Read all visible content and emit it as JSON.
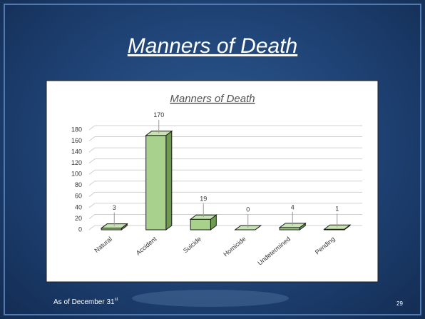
{
  "slide": {
    "title": "Manners of Death",
    "footer": "As of December 31",
    "footer_sup": "st",
    "page_number": 29
  },
  "chart_data": {
    "type": "bar3d",
    "title": "Manners of Death",
    "categories": [
      "Natural",
      "Accident",
      "Suicide",
      "Homicide",
      "Undetermined",
      "Pending"
    ],
    "values": [
      3,
      170,
      19,
      0,
      4,
      1
    ],
    "color": "#a9d18e",
    "ylim": [
      0,
      180
    ],
    "yticks": [
      0,
      20,
      40,
      60,
      80,
      100,
      120,
      140,
      160,
      180
    ],
    "grid": true
  }
}
